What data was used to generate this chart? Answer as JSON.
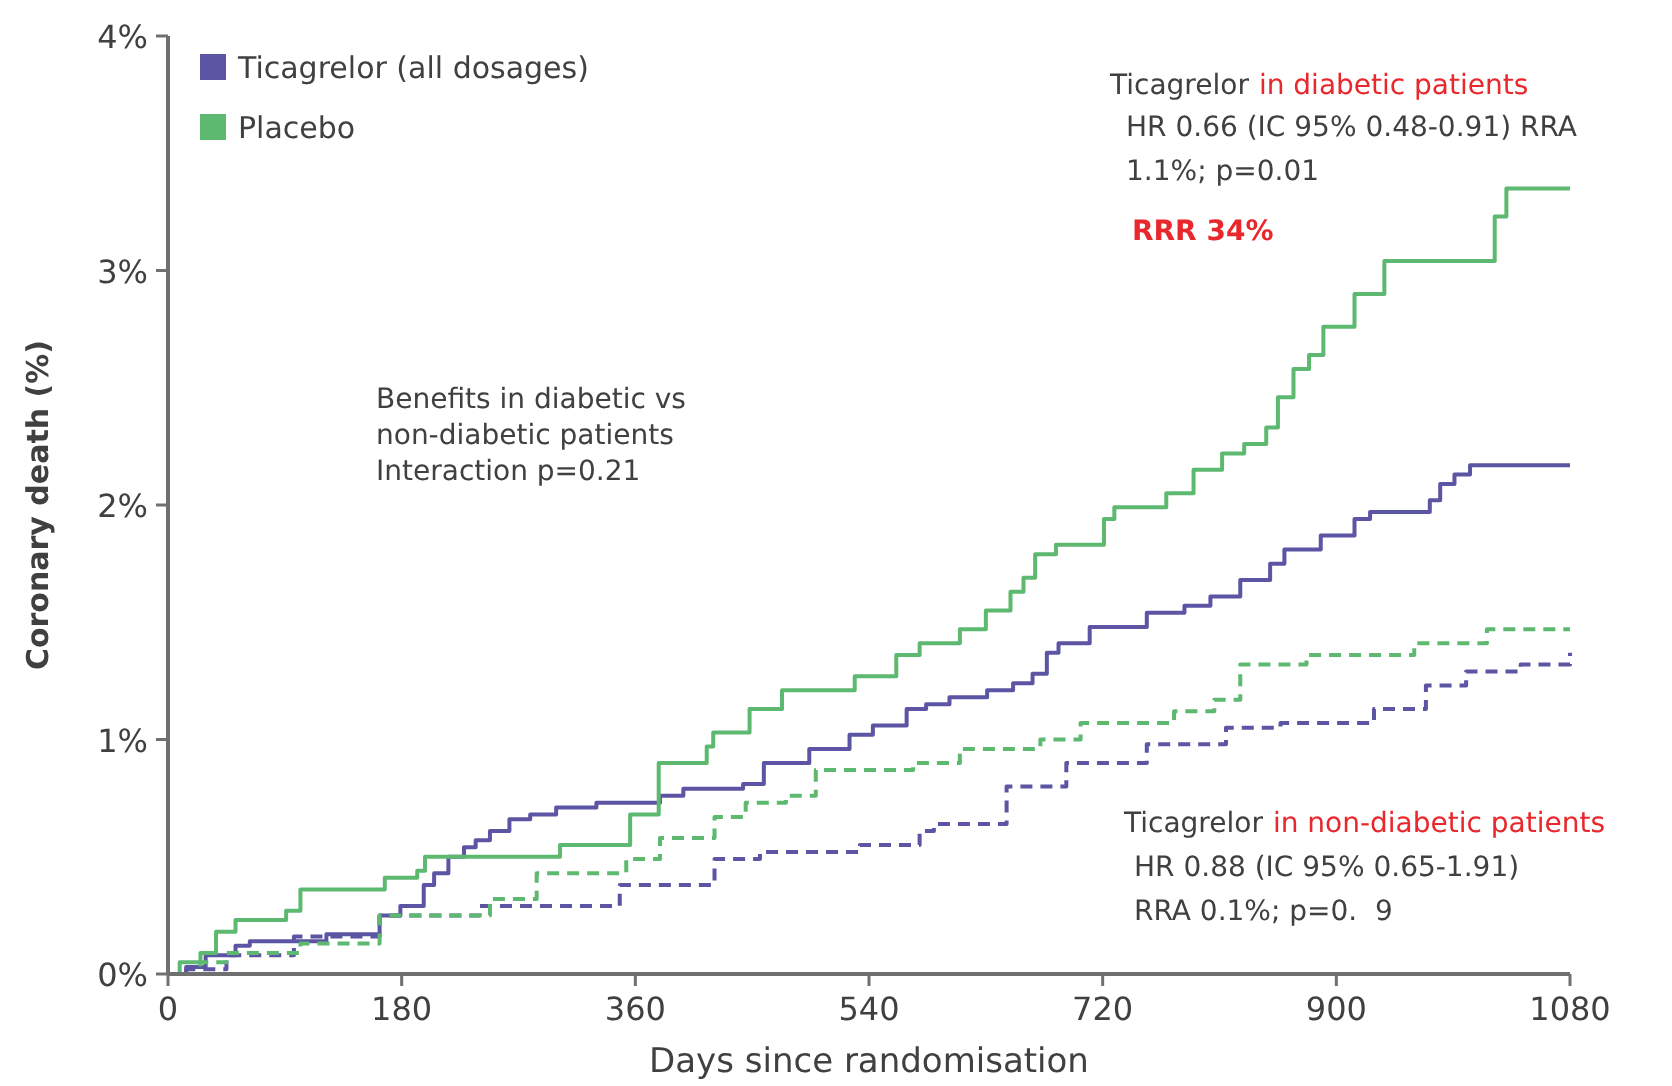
{
  "chart_data": {
    "type": "step",
    "xlabel": "Days since randomisation",
    "ylabel": "Coronary death (%)",
    "xlim": [
      0,
      1080
    ],
    "xticks": [
      0,
      180,
      360,
      540,
      720,
      900,
      1080
    ],
    "ylim": [
      0,
      4
    ],
    "yticks": [
      {
        "value": 0,
        "label": "0%"
      },
      {
        "value": 1,
        "label": "1%"
      },
      {
        "value": 2,
        "label": "2%"
      },
      {
        "value": 3,
        "label": "3%"
      },
      {
        "value": 4,
        "label": "4%"
      }
    ],
    "legend": "top left",
    "grid": false,
    "series": [
      {
        "name": "Ticagrelor (all dosages)",
        "color": "#5b55a3",
        "line_style": "solid",
        "x": [
          0,
          14,
          29,
          52,
          63,
          122,
          163,
          179,
          197,
          205,
          216,
          228,
          237,
          248,
          263,
          279,
          299,
          330,
          379,
          397,
          443,
          459,
          494,
          525,
          543,
          569,
          584,
          602,
          631,
          651,
          666,
          677,
          686,
          710,
          754,
          783,
          803,
          826,
          849,
          860,
          888,
          914,
          926,
          972,
          980,
          991,
          1003,
          1080
        ],
        "values": [
          0,
          0.03,
          0.08,
          0.12,
          0.14,
          0.17,
          0.25,
          0.29,
          0.38,
          0.43,
          0.5,
          0.54,
          0.57,
          0.61,
          0.66,
          0.68,
          0.71,
          0.73,
          0.76,
          0.79,
          0.81,
          0.9,
          0.96,
          1.02,
          1.06,
          1.13,
          1.15,
          1.18,
          1.21,
          1.24,
          1.28,
          1.37,
          1.41,
          1.48,
          1.54,
          1.57,
          1.61,
          1.68,
          1.75,
          1.81,
          1.87,
          1.94,
          1.97,
          2.02,
          2.09,
          2.13,
          2.17,
          2.17
        ]
      },
      {
        "name": "Placebo",
        "color": "#5db870",
        "line_style": "solid",
        "x": [
          0,
          9,
          25,
          37,
          52,
          91,
          102,
          167,
          192,
          198,
          302,
          356,
          378,
          415,
          420,
          448,
          473,
          529,
          561,
          579,
          610,
          630,
          649,
          659,
          668,
          684,
          721,
          729,
          769,
          790,
          812,
          829,
          846,
          855,
          867,
          879,
          890,
          914,
          937,
          1022,
          1031,
          1080
        ],
        "values": [
          0,
          0.05,
          0.09,
          0.18,
          0.23,
          0.27,
          0.36,
          0.41,
          0.44,
          0.5,
          0.55,
          0.68,
          0.9,
          0.97,
          1.03,
          1.13,
          1.21,
          1.27,
          1.36,
          1.41,
          1.47,
          1.55,
          1.63,
          1.69,
          1.79,
          1.83,
          1.94,
          1.99,
          2.05,
          2.15,
          2.22,
          2.26,
          2.33,
          2.46,
          2.58,
          2.64,
          2.76,
          2.9,
          3.04,
          3.23,
          3.35,
          3.35
        ]
      },
      {
        "color": "#5b55a3",
        "line_style": "dashed",
        "x": [
          0,
          14,
          45,
          97,
          163,
          240,
          348,
          421,
          456,
          533,
          579,
          590,
          646,
          692,
          754,
          815,
          857,
          929,
          969,
          1000,
          1042,
          1080
        ],
        "values": [
          0,
          0.02,
          0.08,
          0.16,
          0.25,
          0.29,
          0.38,
          0.49,
          0.52,
          0.55,
          0.61,
          0.64,
          0.8,
          0.9,
          0.98,
          1.05,
          1.07,
          1.13,
          1.23,
          1.29,
          1.32,
          1.37
        ]
      },
      {
        "color": "#5db870",
        "line_style": "dashed",
        "x": [
          0,
          25,
          45,
          102,
          163,
          248,
          284,
          353,
          379,
          421,
          445,
          476,
          499,
          574,
          610,
          672,
          703,
          775,
          806,
          826,
          877,
          960,
          1016,
          1080
        ],
        "values": [
          0,
          0.05,
          0.09,
          0.13,
          0.25,
          0.32,
          0.43,
          0.49,
          0.58,
          0.67,
          0.73,
          0.76,
          0.87,
          0.9,
          0.96,
          1.0,
          1.07,
          1.12,
          1.17,
          1.32,
          1.36,
          1.41,
          1.47,
          1.47
        ]
      }
    ],
    "annotations": [
      "Ticagrelor",
      "in diabetic patients",
      "HR 0.66 (IC 95% 0.48-0.91) RRA",
      "1.1%; p=0.01",
      "RRR 34%",
      "Benefits in diabetic vs",
      "non-diabetic patients",
      "Interaction p=0.21",
      "Ticagrelor",
      "in non-diabetic patients",
      "HR 0.88 (IC 95% 0.65-1.91)",
      "RRA 0.1%; p=0.  9"
    ]
  }
}
